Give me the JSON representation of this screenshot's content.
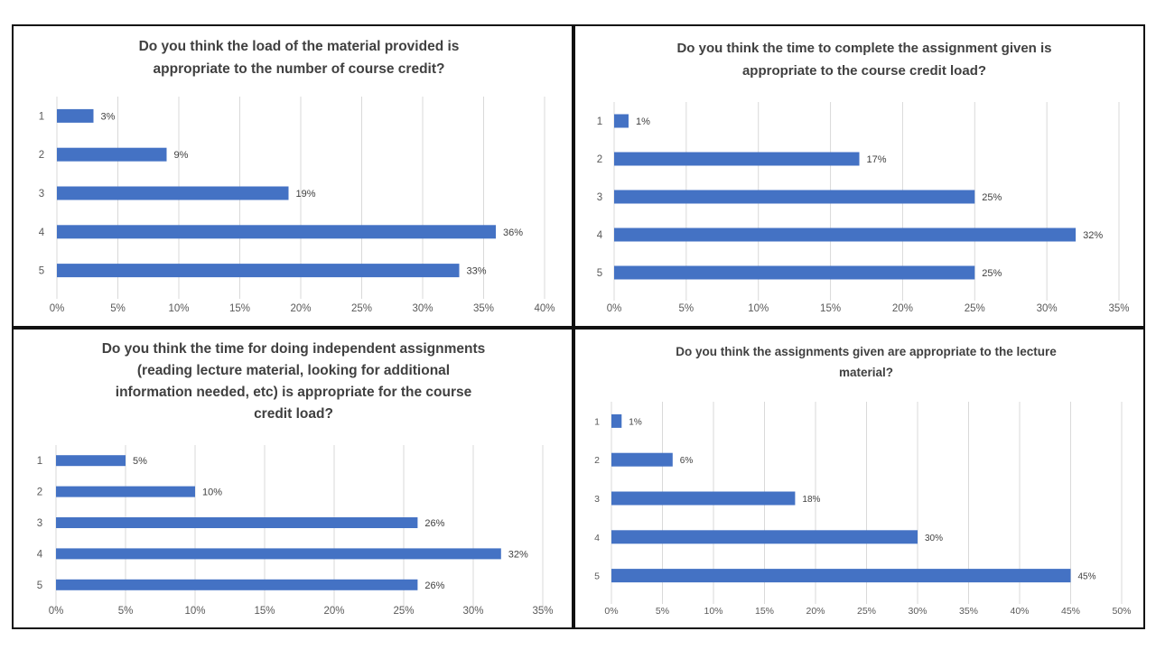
{
  "chart_data": [
    {
      "type": "bar",
      "orientation": "horizontal",
      "title": "Do you think the load of the material provided is appropriate to the number of course credit?",
      "categories": [
        "1",
        "2",
        "3",
        "4",
        "5"
      ],
      "values": [
        3,
        9,
        19,
        36,
        33
      ],
      "value_labels": [
        "3%",
        "9%",
        "19%",
        "36%",
        "33%"
      ],
      "xlim": [
        0,
        40
      ],
      "x_ticks": [
        "0%",
        "5%",
        "10%",
        "15%",
        "20%",
        "25%",
        "30%",
        "35%",
        "40%"
      ],
      "bar_color": "#4472C4",
      "grid": true
    },
    {
      "type": "bar",
      "orientation": "horizontal",
      "title": "Do you think the time to complete the assignment given is appropriate to the course credit load?",
      "categories": [
        "1",
        "2",
        "3",
        "4",
        "5"
      ],
      "values": [
        1,
        17,
        25,
        32,
        25
      ],
      "value_labels": [
        "1%",
        "17%",
        "25%",
        "32%",
        "25%"
      ],
      "xlim": [
        0,
        35
      ],
      "x_ticks": [
        "0%",
        "5%",
        "10%",
        "15%",
        "20%",
        "25%",
        "30%",
        "35%"
      ],
      "bar_color": "#4472C4",
      "grid": true
    },
    {
      "type": "bar",
      "orientation": "horizontal",
      "title": "Do you think the time for doing independent assignments (reading lecture material, looking for additional information needed, etc) is appropriate for the course credit load?",
      "categories": [
        "1",
        "2",
        "3",
        "4",
        "5"
      ],
      "values": [
        5,
        10,
        26,
        32,
        26
      ],
      "value_labels": [
        "5%",
        "10%",
        "26%",
        "32%",
        "26%"
      ],
      "xlim": [
        0,
        35
      ],
      "x_ticks": [
        "0%",
        "5%",
        "10%",
        "15%",
        "20%",
        "25%",
        "30%",
        "35%"
      ],
      "bar_color": "#4472C4",
      "grid": true
    },
    {
      "type": "bar",
      "orientation": "horizontal",
      "title": "Do you think the assignments given are appropriate to the lecture material?",
      "categories": [
        "1",
        "2",
        "3",
        "4",
        "5"
      ],
      "values": [
        1,
        6,
        18,
        30,
        45
      ],
      "value_labels": [
        "1%",
        "6%",
        "18%",
        "30%",
        "45%"
      ],
      "xlim": [
        0,
        50
      ],
      "x_ticks": [
        "0%",
        "5%",
        "10%",
        "15%",
        "20%",
        "25%",
        "30%",
        "35%",
        "40%",
        "45%",
        "50%"
      ],
      "bar_color": "#4472C4",
      "grid": true
    }
  ]
}
